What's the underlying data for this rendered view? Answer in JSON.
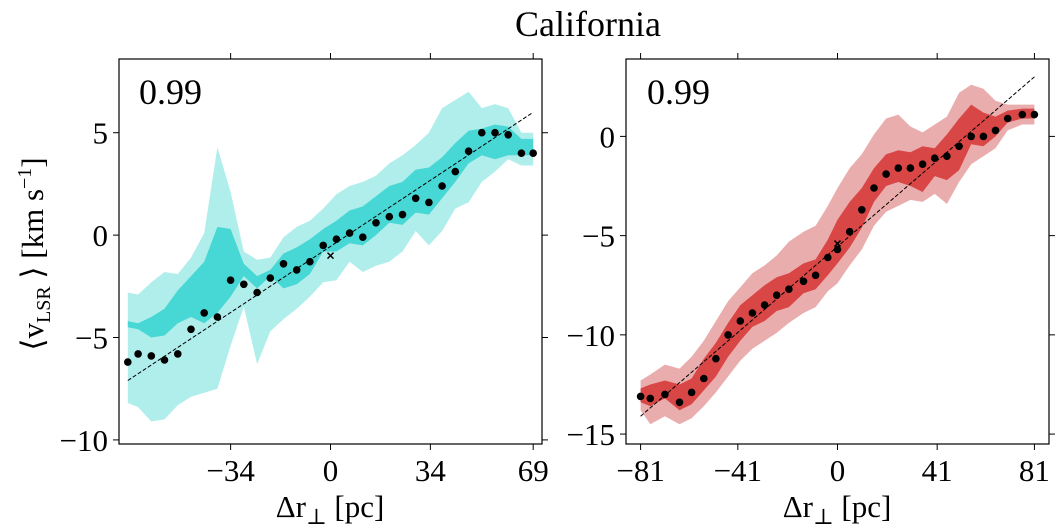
{
  "title": "California",
  "chart_data": [
    {
      "type": "scatter",
      "panel": "left",
      "annotation": "0.99",
      "ylabel_main": "⟨v",
      "ylabel_sub": "LSR",
      "ylabel_units": " ⟩ [km s",
      "ylabel_sup": "−1",
      "ylabel_close": "]",
      "xlabel_main": "Δr",
      "xlabel_sub": "⊥",
      "xlabel_units": " [pc]",
      "xlim": [
        -72,
        72
      ],
      "ylim": [
        -10.2,
        8.6
      ],
      "xticks": [
        -34,
        0,
        34,
        69
      ],
      "xtick_labels": [
        "−34",
        "0",
        "34",
        "69"
      ],
      "yticks": [
        -10,
        -5,
        0,
        5
      ],
      "ytick_labels": [
        "−10",
        "−5",
        "0",
        "5"
      ],
      "colors": {
        "outer_band": "#b0eeec",
        "inner_band": "#47d7d4",
        "points": "#000000",
        "fit": "#000000"
      },
      "x": [
        -69,
        -65.5,
        -61,
        -56.5,
        -52,
        -47.5,
        -43,
        -38.5,
        -34,
        -29.5,
        -25,
        -20.5,
        -16,
        -11.5,
        -7,
        -2.5,
        2,
        6.5,
        11,
        15.5,
        20,
        24.5,
        29,
        33.5,
        38,
        42.5,
        47,
        51.5,
        56,
        60.5,
        65,
        69
      ],
      "y": [
        -6.2,
        -5.8,
        -5.9,
        -6.1,
        -5.8,
        -4.6,
        -3.8,
        -4.0,
        -2.2,
        -2.4,
        -2.8,
        -2.1,
        -1.4,
        -1.7,
        -1.3,
        -0.5,
        -0.2,
        0.1,
        -0.1,
        0.6,
        0.9,
        1.0,
        1.8,
        1.6,
        2.4,
        3.1,
        4.1,
        5.0,
        5.0,
        4.9,
        4.0,
        4.0
      ],
      "inner_lo": [
        -4.5,
        -4.6,
        -5.0,
        -4.9,
        -4.3,
        -4.0,
        -4.3,
        -3.8,
        -3.0,
        -2.0,
        -2.6,
        -2.0,
        -2.6,
        -2.4,
        -1.9,
        -0.8,
        -0.8,
        -0.4,
        -0.5,
        0.0,
        0.6,
        0.5,
        1.1,
        1.0,
        1.8,
        2.6,
        3.5,
        3.9,
        3.7,
        3.9,
        3.9,
        3.9
      ],
      "inner_hi": [
        -4.2,
        -4.3,
        -4.0,
        -3.6,
        -2.7,
        -2.0,
        -1.3,
        0.4,
        0.3,
        -1.4,
        -2.0,
        -1.7,
        -0.9,
        -0.6,
        -0.2,
        0.3,
        0.7,
        1.2,
        1.4,
        1.9,
        2.4,
        2.6,
        3.2,
        3.3,
        3.8,
        4.5,
        5.1,
        5.2,
        5.4,
        5.3,
        4.7,
        4.7
      ],
      "outer_lo": [
        -8.2,
        -8.4,
        -9.1,
        -9.0,
        -8.3,
        -7.9,
        -7.7,
        -7.5,
        -5.4,
        -3.5,
        -6.3,
        -4.7,
        -4.1,
        -3.6,
        -3.0,
        -2.3,
        -2.2,
        -1.3,
        -1.8,
        -1.5,
        -1.3,
        -0.8,
        0.2,
        -0.5,
        0.2,
        1.3,
        1.6,
        2.6,
        3.1,
        3.7,
        3.4,
        3.4
      ],
      "outer_hi": [
        -2.8,
        -2.9,
        -2.3,
        -1.8,
        -1.9,
        -1.1,
        0.1,
        4.3,
        2.1,
        -0.8,
        -1.2,
        -1.1,
        -0.1,
        0.4,
        0.7,
        1.3,
        2.0,
        2.4,
        2.6,
        2.9,
        3.5,
        3.9,
        4.4,
        5.0,
        6.2,
        6.6,
        7.0,
        6.2,
        6.4,
        6.2,
        5.0,
        5.0
      ],
      "fit": {
        "x": [
          -69,
          69
        ],
        "y": [
          -7.1,
          6.0
        ]
      },
      "origin_marker": {
        "x": 0,
        "y": -1.0
      }
    },
    {
      "type": "scatter",
      "panel": "right",
      "annotation": "0.99",
      "xlabel_main": "Δr",
      "xlabel_sub": "⊥",
      "xlabel_units": " [pc]",
      "xlim": [
        -87,
        87
      ],
      "ylim": [
        -15.5,
        3.9
      ],
      "xticks": [
        -81,
        -41,
        0,
        41,
        81
      ],
      "xtick_labels": [
        "−81",
        "−41",
        "0",
        "41",
        "81"
      ],
      "yticks": [
        -15,
        -10,
        -5,
        0
      ],
      "ytick_labels": [
        "−15",
        "−10",
        "−5",
        "0"
      ],
      "colors": {
        "outer_band": "#eaadad",
        "inner_band": "#d94646",
        "points": "#000000",
        "fit": "#000000"
      },
      "x": [
        -81,
        -77,
        -71,
        -65,
        -60,
        -55,
        -50,
        -45,
        -40,
        -35,
        -30,
        -25,
        -20,
        -14,
        -9,
        -4,
        0,
        5,
        10,
        15,
        20,
        25,
        30,
        35,
        40,
        45,
        50,
        55,
        60,
        65,
        70,
        76,
        81
      ],
      "y": [
        -13.1,
        -13.2,
        -13.0,
        -13.4,
        -12.9,
        -12.2,
        -11.2,
        -10.0,
        -9.3,
        -8.9,
        -8.5,
        -8.0,
        -7.7,
        -7.3,
        -7.0,
        -6.1,
        -5.7,
        -4.8,
        -3.7,
        -2.6,
        -1.9,
        -1.6,
        -1.6,
        -1.4,
        -1.1,
        -1.0,
        -0.5,
        0.0,
        0.0,
        0.3,
        0.9,
        1.1,
        1.1
      ],
      "inner_lo": [
        -13.4,
        -13.6,
        -13.2,
        -13.8,
        -13.5,
        -12.8,
        -12.1,
        -11.1,
        -10.3,
        -9.6,
        -9.3,
        -8.8,
        -8.6,
        -7.9,
        -7.7,
        -7.0,
        -6.4,
        -5.6,
        -4.6,
        -3.3,
        -2.5,
        -2.3,
        -2.5,
        -2.8,
        -2.0,
        -2.2,
        -1.7,
        -0.4,
        -0.5,
        0.0,
        0.7,
        0.9,
        0.9
      ],
      "inner_hi": [
        -12.7,
        -12.5,
        -12.3,
        -12.5,
        -12.2,
        -11.2,
        -10.4,
        -9.4,
        -8.5,
        -8.0,
        -7.5,
        -7.1,
        -6.9,
        -6.4,
        -6.2,
        -5.2,
        -4.2,
        -3.3,
        -2.6,
        -1.6,
        -0.9,
        -0.7,
        -0.8,
        -0.5,
        -0.6,
        0.1,
        0.9,
        1.6,
        1.2,
        1.0,
        1.3,
        1.4,
        1.4
      ],
      "outer_lo": [
        -13.8,
        -14.5,
        -14.1,
        -14.5,
        -14.2,
        -13.6,
        -12.9,
        -12.1,
        -11.3,
        -10.7,
        -10.3,
        -9.9,
        -9.4,
        -8.9,
        -8.6,
        -7.8,
        -7.4,
        -6.5,
        -5.7,
        -4.5,
        -3.8,
        -3.5,
        -3.2,
        -3.3,
        -2.9,
        -3.4,
        -2.3,
        -1.4,
        -1.0,
        -0.6,
        0.3,
        0.6,
        0.6
      ],
      "outer_hi": [
        -12.3,
        -12.0,
        -11.5,
        -11.7,
        -11.1,
        -10.3,
        -9.3,
        -8.3,
        -7.6,
        -6.9,
        -6.5,
        -6.0,
        -5.3,
        -4.8,
        -4.5,
        -3.5,
        -2.6,
        -1.6,
        -0.9,
        0.1,
        0.9,
        1.1,
        0.5,
        0.2,
        0.6,
        1.0,
        2.2,
        2.6,
        2.4,
        1.8,
        1.6,
        1.6,
        1.6
      ],
      "fit": {
        "x": [
          -81,
          81
        ],
        "y": [
          -14.1,
          3.0
        ]
      },
      "origin_marker": {
        "x": 0,
        "y": -5.4
      }
    }
  ]
}
